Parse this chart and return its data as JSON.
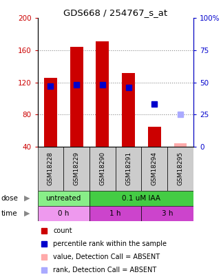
{
  "title": "GDS668 / 254767_s_at",
  "samples": [
    "GSM18228",
    "GSM18229",
    "GSM18290",
    "GSM18291",
    "GSM18294",
    "GSM18295"
  ],
  "count_values": [
    126,
    164,
    171,
    132,
    65,
    null
  ],
  "rank_values": [
    47,
    48,
    48,
    46,
    33,
    null
  ],
  "absent_count_values": [
    null,
    null,
    null,
    null,
    null,
    44
  ],
  "absent_rank_values": [
    null,
    null,
    null,
    null,
    null,
    25
  ],
  "count_color": "#cc0000",
  "rank_color": "#0000cc",
  "absent_count_color": "#ffaaaa",
  "absent_rank_color": "#aaaaff",
  "ylim_left": [
    40,
    200
  ],
  "ylim_right": [
    0,
    100
  ],
  "yticks_left": [
    40,
    80,
    120,
    160,
    200
  ],
  "yticks_right": [
    0,
    25,
    50,
    75,
    100
  ],
  "bar_bottom": 40,
  "dose_labels": [
    {
      "text": "untreated",
      "start": 0,
      "end": 2,
      "color": "#88ee88"
    },
    {
      "text": "0.1 uM IAA",
      "start": 2,
      "end": 6,
      "color": "#44cc44"
    }
  ],
  "time_labels": [
    {
      "text": "0 h",
      "start": 0,
      "end": 2,
      "color": "#ee99ee"
    },
    {
      "text": "1 h",
      "start": 2,
      "end": 4,
      "color": "#cc44cc"
    },
    {
      "text": "3 h",
      "start": 4,
      "end": 6,
      "color": "#cc44cc"
    }
  ],
  "sample_bg": "#cccccc",
  "grid_color": "#888888",
  "bg_color": "#ffffff",
  "bar_width": 0.5,
  "rank_marker_size": 6
}
